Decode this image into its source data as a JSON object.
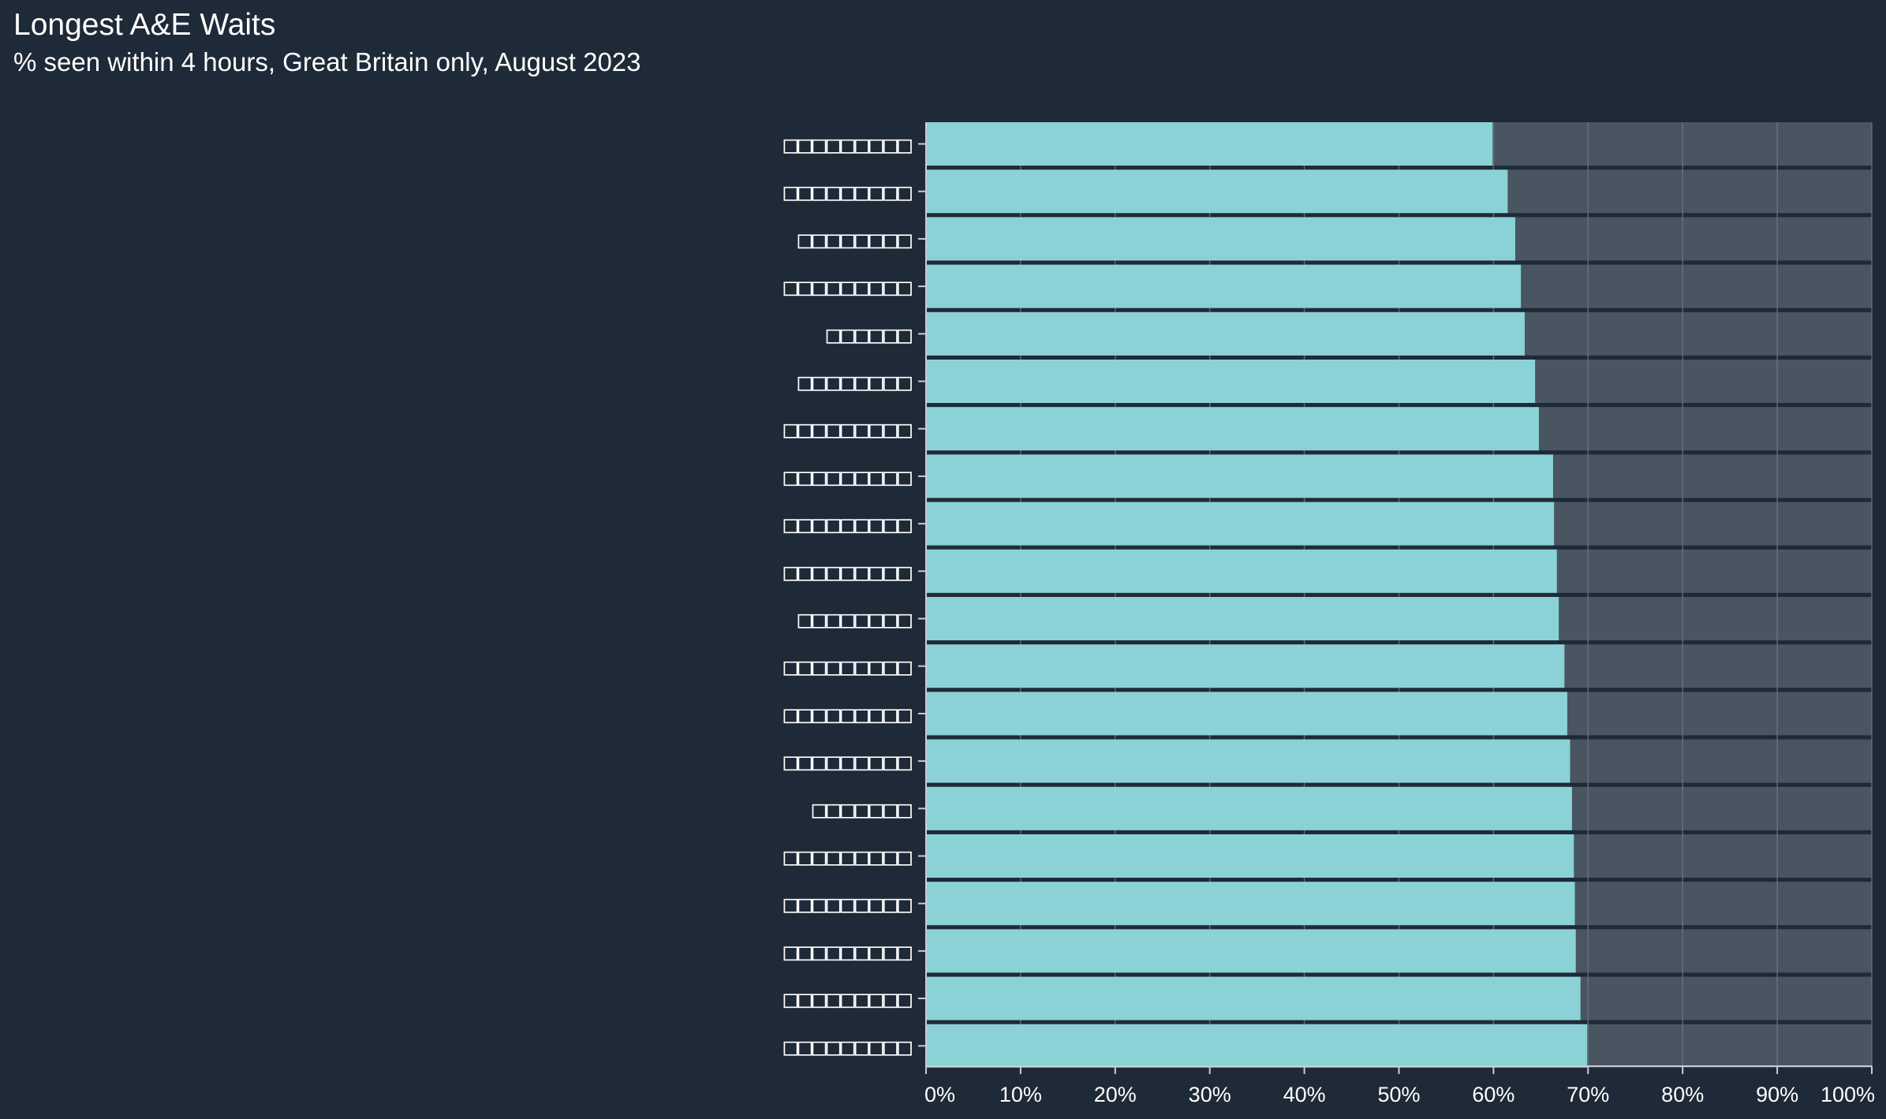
{
  "title": "Longest A&E Waits",
  "subtitle": "% seen within 4 hours, Great Britain only, August 2023",
  "colors": {
    "background": "#1f2a38",
    "bar": "#8ad2d6",
    "track": "#4a5562",
    "gridline": "#6c7682",
    "axis": "#c8cdd2",
    "text": "#ffffff"
  },
  "chart_data": {
    "type": "bar",
    "orientation": "horizontal",
    "categories": [
      "□□□□□□□□□",
      "□□□□□□□□□",
      "□□□□□□□□",
      "□□□□□□□□□",
      "□□□□□□",
      "□□□□□□□□",
      "□□□□□□□□□",
      "□□□□□□□□□",
      "□□□□□□□□□",
      "□□□□□□□□□",
      "□□□□□□□□",
      "□□□□□□□□□",
      "□□□□□□□□□",
      "□□□□□□□□□",
      "□□□□□□□",
      "□□□□□□□□□",
      "□□□□□□□□□",
      "□□□□□□□□□",
      "□□□□□□□□□",
      "□□□□□□□□□"
    ],
    "values": [
      59.9,
      61.5,
      62.3,
      62.9,
      63.3,
      64.4,
      64.8,
      66.3,
      66.4,
      66.7,
      66.9,
      67.5,
      67.8,
      68.1,
      68.3,
      68.5,
      68.6,
      68.7,
      69.2,
      69.9
    ],
    "background_max": 100,
    "xlim": [
      0,
      100
    ],
    "xticks": [
      0,
      10,
      20,
      30,
      40,
      50,
      60,
      70,
      80,
      90,
      100
    ],
    "xtick_labels": [
      "0%",
      "10%",
      "20%",
      "30%",
      "40%",
      "50%",
      "60%",
      "70%",
      "80%",
      "90%",
      "100%"
    ],
    "xlabel": "",
    "ylabel": "",
    "grid": "vertical",
    "legend": "none"
  }
}
